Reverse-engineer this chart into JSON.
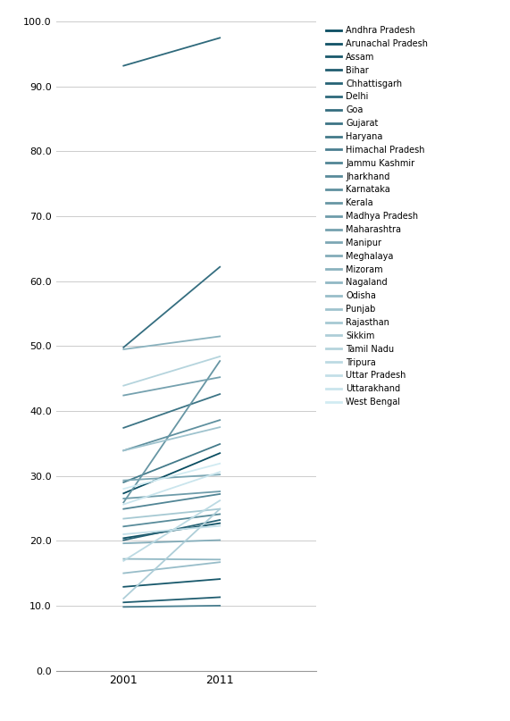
{
  "states": [
    "Andhra Pradesh",
    "Arunachal Pradesh",
    "Assam",
    "Bihar",
    "Chhattisgarh",
    "Delhi",
    "Goa",
    "Gujarat",
    "Haryana",
    "Himachal Pradesh",
    "Jammu Kashmir",
    "Jharkhand",
    "Karnataka",
    "Kerala",
    "Madhya Pradesh",
    "Maharashtra",
    "Manipur",
    "Meghalaya",
    "Mizoram",
    "Nagaland",
    "Odisha",
    "Punjab",
    "Rajasthan",
    "Sikkim",
    "Tamil Nadu",
    "Tripura",
    "Uttar Pradesh",
    "Uttarakhand",
    "West Bengal"
  ],
  "data_2001": [
    27.3,
    20.4,
    12.9,
    10.5,
    20.1,
    93.2,
    49.8,
    37.4,
    29.0,
    9.8,
    24.9,
    22.2,
    33.9,
    25.9,
    26.5,
    42.4,
    29.3,
    19.6,
    49.5,
    17.2,
    15.0,
    33.9,
    23.4,
    11.1,
    43.9,
    16.9,
    21.0,
    25.6,
    28.0
  ],
  "data_2011": [
    33.5,
    22.7,
    14.1,
    11.3,
    23.2,
    97.5,
    62.2,
    42.6,
    34.9,
    10.0,
    27.2,
    24.1,
    38.6,
    47.7,
    27.6,
    45.2,
    30.2,
    20.1,
    51.5,
    17.1,
    16.7,
    37.5,
    24.9,
    24.9,
    48.4,
    26.2,
    22.3,
    30.6,
    31.9
  ],
  "legend_order": [
    "Andhra Pradesh",
    "Arunachal Pradesh",
    "Assam",
    "Bihar",
    "Chhattisgarh",
    "Delhi",
    "Goa",
    "Gujarat",
    "Haryana",
    "Himachal Pradesh",
    "Jammu Kashmir",
    "Jharkhand",
    "Karnataka",
    "Kerala",
    "Madhya Pradesh",
    "Maharashtra",
    "Manipur",
    "Meghalaya",
    "Mizoram",
    "Nagaland",
    "Odisha",
    "Punjab",
    "Rajasthan",
    "Sikkim",
    "Tamil Nadu",
    "Tripura",
    "Uttar Pradesh",
    "Uttarakhand",
    "West Bengal"
  ],
  "ylim": [
    0.0,
    100.0
  ],
  "yticks": [
    0.0,
    10.0,
    20.0,
    30.0,
    40.0,
    50.0,
    60.0,
    70.0,
    80.0,
    90.0,
    100.0
  ],
  "background_color": "#ffffff",
  "grid_color": "#cccccc",
  "dark_teal": [
    0.04,
    0.3,
    0.38
  ],
  "light_teal": [
    0.82,
    0.92,
    0.95
  ]
}
